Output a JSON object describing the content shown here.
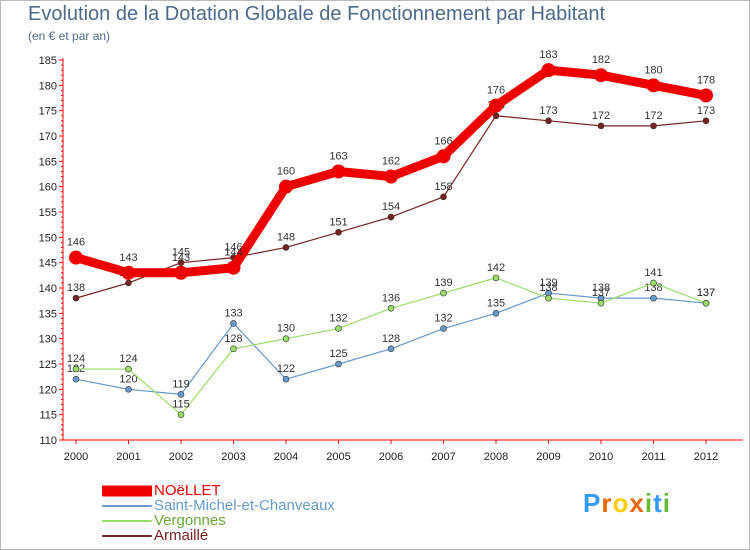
{
  "header": {
    "title": "Evolution de la Dotation Globale de Fonctionnement par Habitant",
    "subtitle": "(en € et par an)",
    "title_color": "#4d6a8a"
  },
  "chart_data": {
    "type": "line",
    "categories": [
      "2000",
      "2001",
      "2002",
      "2003",
      "2004",
      "2005",
      "2006",
      "2007",
      "2008",
      "2009",
      "2010",
      "2011",
      "2012"
    ],
    "ylim": [
      110,
      185
    ],
    "yticks": [
      110,
      115,
      120,
      125,
      130,
      135,
      140,
      145,
      150,
      155,
      160,
      165,
      170,
      175,
      180,
      185
    ],
    "grid": false,
    "legend_position": "bottom-left",
    "series": [
      {
        "name": "NOëLLET",
        "color": "#ee0000",
        "values": [
          146,
          143,
          143,
          144,
          160,
          163,
          162,
          166,
          176,
          183,
          182,
          180,
          178
        ]
      },
      {
        "name": "Saint-Michel-et-Chanveaux",
        "color": "#6699cc",
        "values": [
          122,
          120,
          119,
          133,
          122,
          125,
          128,
          132,
          135,
          139,
          138,
          138,
          137
        ]
      },
      {
        "name": "Vergonnes",
        "color": "#99dd66",
        "values": [
          124,
          124,
          115,
          128,
          130,
          132,
          136,
          139,
          142,
          138,
          137,
          141,
          137
        ]
      },
      {
        "name": "Armaillé",
        "color": "#772222",
        "values": [
          138,
          141,
          145,
          146,
          148,
          151,
          154,
          158,
          174,
          173,
          172,
          172,
          173
        ]
      }
    ]
  },
  "legend": {
    "items": [
      "NOëLLET",
      "Saint-Michel-et-Chanveaux",
      "Vergonnes",
      "Armaillé"
    ]
  },
  "logo": {
    "text": "Proxiti",
    "letters": [
      "P",
      "r",
      "o",
      "x",
      "i",
      "t",
      "i"
    ],
    "colors": [
      "#3399ff",
      "#ee6600",
      "#ffcc00",
      "#ee6600",
      "#66bb33",
      "#3399ff",
      "#66bb33"
    ]
  }
}
